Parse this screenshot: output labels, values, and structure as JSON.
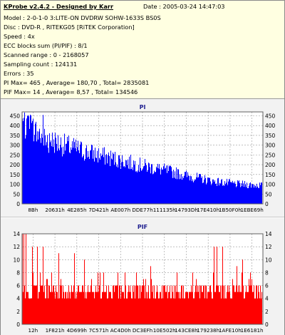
{
  "header": {
    "title": "KProbe v2.4.2 - Designed by Karr",
    "date": "Date : 2005-03-24 14:47:03",
    "lines": [
      "Model : 2-0-1-0 3:LITE-ON DVDRW SOHW-1633S BS0S",
      "Disc : DVD-R , RITEKG05 [RiTEK Corporation]",
      "Speed : 4x",
      "ECC blocks sum (PI/PIF) : 8/1",
      "Scanned range : 0 - 2168057",
      "Sampling count : 124131",
      "Errors : 35",
      "PI Max= 465 , Average= 180,70 , Total= 2835081",
      "PIF Max= 14 , Average= 8,57 , Total= 134546"
    ]
  },
  "colors": {
    "info_bg": "#ffffe1",
    "pi_bar": "#0000ff",
    "pif_bar": "#ff0000",
    "title_text": "#1f1f8f"
  },
  "chart_data": [
    {
      "type": "bar",
      "title": "PI",
      "x_ticks": [
        "8Bh",
        "20631h",
        "4E285h",
        "7D421h",
        "AE007h",
        "DDE77h",
        "111135h",
        "14793Dh",
        "17E410h",
        "1B50F0h",
        "1EBE69h"
      ],
      "y_ticks_left": [
        0,
        50,
        100,
        150,
        200,
        250,
        300,
        350,
        400,
        450
      ],
      "y_ticks_right": [
        0,
        50,
        100,
        150,
        200,
        250,
        300,
        350,
        400,
        450
      ],
      "ylim": [
        0,
        470
      ],
      "grid": true,
      "profile_x": [
        0,
        0.02,
        0.05,
        0.1,
        0.2,
        0.3,
        0.4,
        0.5,
        0.6,
        0.7,
        0.8,
        0.9,
        1.0
      ],
      "profile_y": [
        420,
        390,
        370,
        330,
        290,
        255,
        225,
        195,
        170,
        140,
        115,
        100,
        95
      ],
      "peak": 465
    },
    {
      "type": "bar",
      "title": "PIF",
      "x_ticks": [
        "12h",
        "1F821h",
        "4D699h",
        "7C571h",
        "AC4D0h",
        "DC3EFh",
        "10E502h",
        "143CE8h",
        "179238h",
        "1AFE10h",
        "1E6181h"
      ],
      "y_ticks_left": [
        0,
        2,
        4,
        6,
        8,
        10,
        12,
        14
      ],
      "y_ticks_right": [
        0,
        2,
        4,
        6,
        8,
        10,
        12,
        14
      ],
      "ylim": [
        0,
        14
      ],
      "grid": true,
      "base_level": 4,
      "peak": 14
    }
  ]
}
